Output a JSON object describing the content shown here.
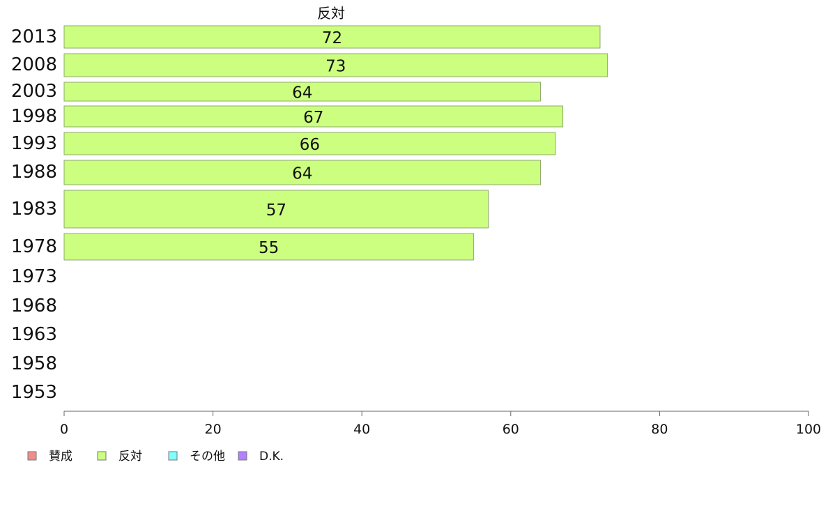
{
  "chart_data": {
    "type": "bar",
    "orientation": "horizontal",
    "categories": [
      "2013",
      "2008",
      "2003",
      "1998",
      "1993",
      "1988",
      "1983",
      "1978",
      "1973",
      "1968",
      "1963",
      "1958",
      "1953"
    ],
    "series": [
      {
        "name": "反対",
        "color": "#ccff80",
        "values": [
          72,
          73,
          64,
          67,
          66,
          64,
          57,
          55,
          null,
          null,
          null,
          null,
          null
        ]
      }
    ],
    "series_title": "反対",
    "xlim": [
      0,
      100
    ],
    "xticks": [
      "0",
      "20",
      "40",
      "60",
      "80",
      "100"
    ],
    "grid": false,
    "legend": {
      "position": "bottom-left",
      "items": [
        {
          "label": "賛成",
          "color": "#f08c8c"
        },
        {
          "label": "反対",
          "color": "#ccff80"
        },
        {
          "label": "その他",
          "color": "#80ffff"
        },
        {
          "label": "D.K.",
          "color": "#b380ff"
        }
      ]
    }
  }
}
